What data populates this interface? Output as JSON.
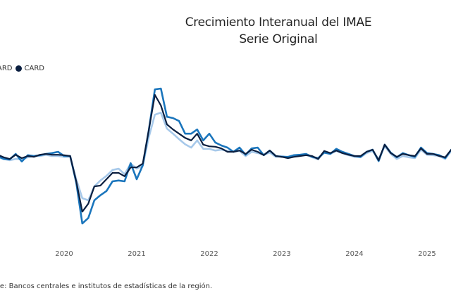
{
  "chart_data": {
    "type": "line",
    "title": "Crecimiento Interanual del IMAE",
    "subtitle": "Serie Original",
    "legend": [
      {
        "label": "ARD",
        "color": "#1a75bc"
      },
      {
        "label": "CARD",
        "color": "#0b1f40"
      }
    ],
    "x_start": "2019-02",
    "x_tick_labels": [
      "2020",
      "2021",
      "2022",
      "2023",
      "2024",
      "2025"
    ],
    "xlabel": "",
    "ylabel": "",
    "grid": false,
    "series": [
      {
        "name": "series-light",
        "color": "#a7c9ea",
        "values": [
          2.8,
          2.3,
          2.0,
          2.3,
          2.2,
          2.7,
          3.0,
          3.0,
          3.3,
          3.0,
          3.0,
          2.8,
          2.8,
          -2.5,
          -7.0,
          -7.5,
          -4.2,
          -2.8,
          -1.7,
          -0.3,
          0,
          -1.3,
          1.2,
          0,
          0.7,
          7.5,
          12.8,
          13.3,
          9.5,
          8.3,
          7.0,
          5.8,
          5.0,
          6.7,
          4.7,
          4.7,
          4.3,
          4.5,
          4.2,
          4.0,
          4.2,
          3.0,
          4.0,
          3.7,
          3.3,
          3.8,
          2.8,
          3.0,
          2.7,
          3.0,
          3.2,
          3.3,
          2.7,
          2.2,
          4.0,
          3.5,
          4.2,
          3.7,
          3.2,
          2.8,
          2.7,
          3.7,
          4.2,
          2.3,
          5.3,
          3.5,
          2.3,
          3.0,
          2.7,
          2.5,
          4.5,
          3.3,
          3.2,
          3.0,
          2.3,
          4.2,
          2.5
        ]
      },
      {
        "name": "ARD",
        "color": "#1a75bc",
        "values": [
          3.0,
          2.3,
          2.2,
          3.5,
          1.7,
          3.2,
          3.0,
          3.2,
          3.5,
          3.7,
          4.0,
          3.0,
          3.0,
          -3.3,
          -13.0,
          -11.7,
          -7.5,
          -6.3,
          -5.3,
          -3.0,
          -2.8,
          -3.0,
          1.3,
          -2.5,
          0.8,
          9.2,
          18.8,
          19.0,
          12.3,
          12.0,
          11.3,
          8.3,
          8.3,
          9.3,
          6.7,
          8.3,
          6.2,
          5.5,
          5.0,
          4.0,
          5.0,
          3.3,
          4.8,
          5.0,
          3.2,
          4.3,
          3.0,
          2.8,
          2.8,
          3.2,
          3.3,
          3.5,
          2.8,
          2.5,
          3.8,
          3.5,
          4.7,
          4.0,
          3.5,
          3.0,
          2.8,
          4.0,
          4.5,
          1.8,
          5.7,
          3.8,
          2.7,
          3.7,
          3.2,
          2.8,
          5.0,
          3.7,
          3.5,
          3.2,
          2.5,
          4.5,
          3.0
        ]
      },
      {
        "name": "CARD",
        "color": "#0b1f40",
        "values": [
          3.3,
          2.7,
          2.3,
          3.3,
          2.5,
          3.0,
          2.8,
          3.3,
          3.5,
          3.3,
          3.3,
          3.2,
          3.0,
          -3.0,
          -10.2,
          -8.3,
          -4.2,
          -4.0,
          -2.5,
          -1.0,
          -1.0,
          -1.8,
          0.3,
          0.3,
          1.2,
          9.2,
          17.5,
          15.0,
          10.5,
          9.3,
          8.3,
          7.3,
          6.7,
          8.3,
          5.7,
          5.3,
          5.2,
          4.8,
          4.0,
          4.0,
          4.3,
          3.5,
          4.5,
          4.0,
          3.2,
          4.3,
          3.0,
          2.8,
          2.5,
          2.8,
          3.0,
          3.2,
          3.0,
          2.3,
          4.2,
          3.7,
          4.3,
          3.7,
          3.3,
          3.0,
          3.0,
          4.0,
          4.5,
          2.0,
          5.7,
          3.7,
          2.8,
          3.5,
          3.2,
          3.0,
          4.8,
          3.5,
          3.5,
          3.0,
          2.7,
          4.5,
          2.7
        ]
      }
    ],
    "source": "te: Bancos centrales e institutos de estadísticas de la región."
  }
}
